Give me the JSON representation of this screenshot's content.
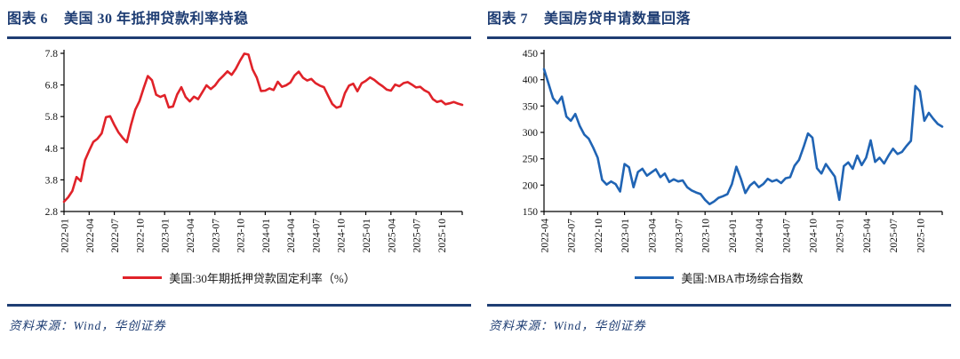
{
  "figures": [
    {
      "no": "图表 6",
      "title": "美国 30 年抵押贷款利率持稳",
      "legend": "美国:30年期抵押贷款固定利率（%）",
      "source": "资料来源：Wind，华创证券"
    },
    {
      "no": "图表 7",
      "title": "美国房贷申请数量回落",
      "legend": "美国:MBA市场综合指数",
      "source": "资料来源：Wind，华创证券"
    }
  ],
  "colors": {
    "accent_navy": "#1e3d73",
    "red_line": "#e02229",
    "blue_line": "#2064b4",
    "axis_black": "#000000"
  },
  "chart_data": [
    {
      "type": "line",
      "title": "美国 30 年抵押贷款利率持稳",
      "legend_position": "bottom",
      "grid": false,
      "color": "#e02229",
      "ylim": [
        2.8,
        7.8
      ],
      "y_ticks": [
        "2.8",
        "3.8",
        "4.8",
        "5.8",
        "6.8",
        "7.8"
      ],
      "x_tick_labels": [
        "2022-01",
        "2022-04",
        "2022-07",
        "2022-10",
        "2023-01",
        "2023-04",
        "2023-07",
        "2023-10",
        "2024-01",
        "2024-04",
        "2024-07",
        "2024-10",
        "2025-01",
        "2025-04",
        "2025-07",
        "2025-10"
      ],
      "x_tick_step_months": 3,
      "x_span_months": 47.5,
      "series": [
        {
          "name": "美国:30年期抵押贷款固定利率（%）",
          "values": [
            3.11,
            3.25,
            3.45,
            3.89,
            3.76,
            4.42,
            4.72,
            5.0,
            5.1,
            5.27,
            5.78,
            5.81,
            5.54,
            5.3,
            5.13,
            4.99,
            5.55,
            6.02,
            6.29,
            6.7,
            7.08,
            6.95,
            6.49,
            6.42,
            6.48,
            6.09,
            6.12,
            6.5,
            6.73,
            6.42,
            6.28,
            6.43,
            6.35,
            6.57,
            6.79,
            6.67,
            6.78,
            6.96,
            7.09,
            7.23,
            7.12,
            7.31,
            7.57,
            7.79,
            7.76,
            7.29,
            7.03,
            6.61,
            6.62,
            6.69,
            6.64,
            6.9,
            6.74,
            6.79,
            6.88,
            7.1,
            7.22,
            7.03,
            6.94,
            6.99,
            6.86,
            6.78,
            6.73,
            6.46,
            6.2,
            6.08,
            6.12,
            6.54,
            6.78,
            6.84,
            6.6,
            6.85,
            6.93,
            7.04,
            6.96,
            6.85,
            6.76,
            6.65,
            6.62,
            6.81,
            6.76,
            6.86,
            6.89,
            6.81,
            6.72,
            6.74,
            6.63,
            6.56,
            6.35,
            6.26,
            6.3,
            6.19,
            6.22,
            6.26,
            6.21,
            6.17
          ]
        }
      ]
    },
    {
      "type": "line",
      "title": "美国房贷申请数量回落",
      "legend_position": "bottom",
      "grid": false,
      "color": "#2064b4",
      "ylim": [
        150,
        450
      ],
      "y_ticks": [
        "150",
        "200",
        "250",
        "300",
        "350",
        "400",
        "450"
      ],
      "x_tick_labels": [
        "2022-04",
        "2022-07",
        "2022-10",
        "2023-01",
        "2023-04",
        "2023-07",
        "2023-10",
        "2024-01",
        "2024-04",
        "2024-07",
        "2024-10",
        "2025-01",
        "2025-04",
        "2025-07",
        "2025-10"
      ],
      "x_tick_step_months": 3,
      "x_span_months": 44.5,
      "series": [
        {
          "name": "美国:MBA市场综合指数",
          "values": [
            420,
            393,
            365,
            355,
            368,
            330,
            322,
            335,
            312,
            296,
            288,
            271,
            252,
            210,
            201,
            207,
            202,
            188,
            240,
            234,
            196,
            225,
            231,
            218,
            224,
            230,
            215,
            222,
            206,
            211,
            207,
            209,
            196,
            190,
            186,
            183,
            172,
            164,
            169,
            176,
            179,
            183,
            202,
            235,
            212,
            185,
            199,
            206,
            196,
            202,
            212,
            207,
            210,
            204,
            213,
            215,
            237,
            248,
            272,
            298,
            290,
            232,
            222,
            240,
            228,
            216,
            172,
            236,
            243,
            231,
            256,
            238,
            252,
            285,
            244,
            252,
            241,
            256,
            269,
            259,
            263,
            274,
            284,
            388,
            378,
            322,
            337,
            326,
            316,
            311
          ]
        }
      ]
    }
  ]
}
